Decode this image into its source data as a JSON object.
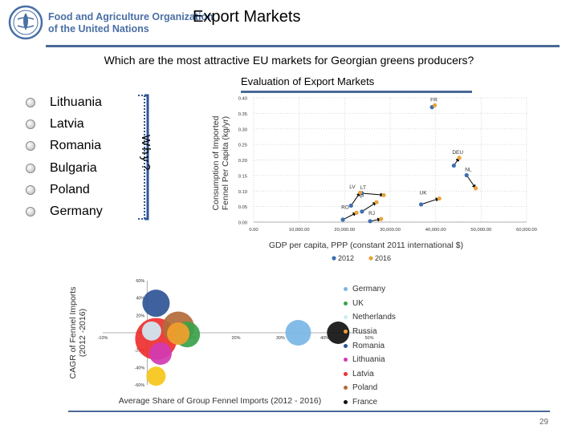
{
  "header": {
    "org_line1": "Food and Agriculture Organization",
    "org_line2": "of the United Nations",
    "logo_text": "FAO",
    "title": "Export Markets",
    "brand_color": "#4a6fa5"
  },
  "subtitle": "Which are the most attractive EU markets for Georgian greens producers?",
  "sidebar": {
    "countries": [
      "Lithuania",
      "Latvia",
      "Romania",
      "Bulgaria",
      "Poland",
      "Germany"
    ],
    "why_label": "Why?"
  },
  "page_number": "29",
  "chart_data": [
    {
      "type": "scatter",
      "title": "Evaluation of Export Markets",
      "xlabel": "GDP per capita, PPP (constant 2011 international $)",
      "ylabel": "Consumption of Imported Fennel Per Capita (kg/yr)",
      "xlim": [
        0,
        60000
      ],
      "ylim": [
        0,
        0.4
      ],
      "x_ticks": [
        "0.00",
        "10,000.00",
        "20,000.00",
        "30,000.00",
        "40,000.00",
        "50,000.00",
        "60,000.00"
      ],
      "y_ticks": [
        "0.00",
        "0.05",
        "0.10",
        "0.15",
        "0.20",
        "0.25",
        "0.30",
        "0.35",
        "0.40"
      ],
      "grid": true,
      "legend": [
        {
          "name": "2012",
          "color": "#3e6fb0"
        },
        {
          "name": "2016",
          "color": "#e8a33c"
        }
      ],
      "legend_position": "bottom",
      "countries": [
        {
          "label": "FR",
          "x2012": 39200,
          "y2012": 0.37,
          "x2016": 39800,
          "y2016": 0.376
        },
        {
          "label": "DEU",
          "x2012": 44000,
          "y2012": 0.182,
          "x2016": 45200,
          "y2016": 0.207
        },
        {
          "label": "NL",
          "x2012": 46800,
          "y2012": 0.151,
          "x2016": 48800,
          "y2016": 0.109
        },
        {
          "label": "LT",
          "x2012": 23800,
          "y2012": 0.093,
          "x2016": 28600,
          "y2016": 0.087
        },
        {
          "label": "LV",
          "x2012": 21400,
          "y2012": 0.053,
          "x2016": 23400,
          "y2016": 0.095
        },
        {
          "label": "UK",
          "x2012": 36800,
          "y2012": 0.057,
          "x2016": 40800,
          "y2016": 0.076
        },
        {
          "label": "P",
          "x2012": 23800,
          "y2012": 0.034,
          "x2016": 27000,
          "y2016": 0.064
        },
        {
          "label": "RO",
          "x2012": 19600,
          "y2012": 0.008,
          "x2016": 22600,
          "y2016": 0.03
        },
        {
          "label": "RJ",
          "x2012": 25600,
          "y2012": 0.003,
          "x2016": 28000,
          "y2016": 0.01
        }
      ]
    },
    {
      "type": "scatter",
      "title": "",
      "xlabel": "Average Share of Group Fennel Imports (2012 - 2016)",
      "ylabel": "CAGR of Fennel Imports (2012 -2016)",
      "xlim": [
        -10,
        50
      ],
      "ylim": [
        -60,
        60
      ],
      "x_ticks": [
        "-10%",
        "0%",
        "10%",
        "20%",
        "30%",
        "40%",
        "50%"
      ],
      "y_ticks": [
        "60%",
        "40%",
        "20%",
        "0%",
        "-20%",
        "-40%",
        "-60%"
      ],
      "legend_position": "right",
      "series": [
        {
          "name": "Germany",
          "color": "#79b6e6",
          "x": 34,
          "y": 0,
          "size": 16
        },
        {
          "name": "UK",
          "color": "#3aa24a",
          "x": 9,
          "y": -2,
          "size": 16
        },
        {
          "name": "Netherlands",
          "color": "#cfeaf5",
          "x": 1,
          "y": 2,
          "size": 12
        },
        {
          "name": "Russia",
          "color": "#f2a02d",
          "x": 7,
          "y": -1,
          "size": 14
        },
        {
          "name": "Romania",
          "color": "#2f5597",
          "x": 2,
          "y": 34,
          "size": 17
        },
        {
          "name": "Lithuania",
          "color": "#d13ab2",
          "x": 3,
          "y": -24,
          "size": 14
        },
        {
          "name": "Latvia",
          "color": "#ee2f2f",
          "x": 2,
          "y": -7,
          "size": 26
        },
        {
          "name": "Poland",
          "color": "#b26a3a",
          "x": 7,
          "y": 6,
          "size": 20
        },
        {
          "name": "France",
          "color": "#111111",
          "x": 43,
          "y": 0,
          "size": 14
        },
        {
          "name": "",
          "color": "#f5c518",
          "x": 2,
          "y": -50,
          "size": 12
        }
      ]
    }
  ]
}
